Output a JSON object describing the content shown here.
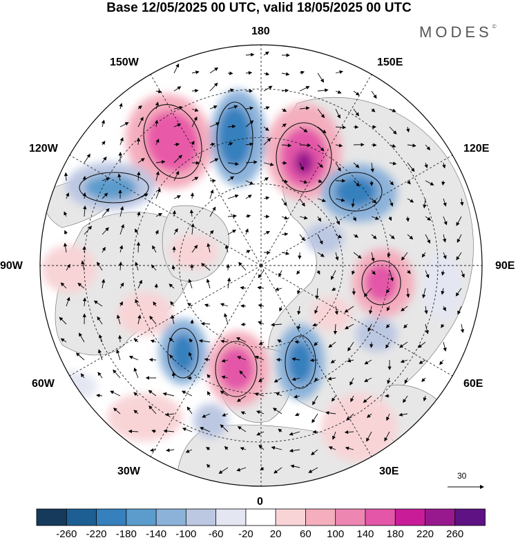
{
  "title": "Base 12/05/2025 00 UTC, valid 18/05/2025 00 UTC",
  "brand": "MODES",
  "brand_mark": "©",
  "lon_labels": {
    "n": "180",
    "s": "0",
    "e90": "90E",
    "w90": "90W",
    "e60": "60E",
    "w60": "60W",
    "e120": "120E",
    "w120": "120W",
    "e150": "150E",
    "w150": "150W",
    "e30": "30E",
    "w30": "30W"
  },
  "vector_reference": "30",
  "colors": {
    "blue_deep": "#0a3d66",
    "blue_mid": "#3a7eb6",
    "blue_light": "#b9c8e3",
    "pink_deep": "#a01d7a",
    "pink_mid": "#e85aa8",
    "pink_light": "#f7c6cf",
    "land": "#e6e6e6"
  },
  "colorbar": {
    "ticks": [
      "-260",
      "-220",
      "-180",
      "-140",
      "-100",
      "-60",
      "-20",
      "20",
      "60",
      "100",
      "140",
      "180",
      "220",
      "260"
    ],
    "colors": [
      "#163a5c",
      "#1d5f93",
      "#3580bd",
      "#5b9ccc",
      "#8cb2da",
      "#bcc7e2",
      "#e4e6f2",
      "#ffffff",
      "#f8d4d7",
      "#f4aebe",
      "#ee86b2",
      "#e356a8",
      "#c91c98",
      "#98198d",
      "#5e1283"
    ]
  }
}
